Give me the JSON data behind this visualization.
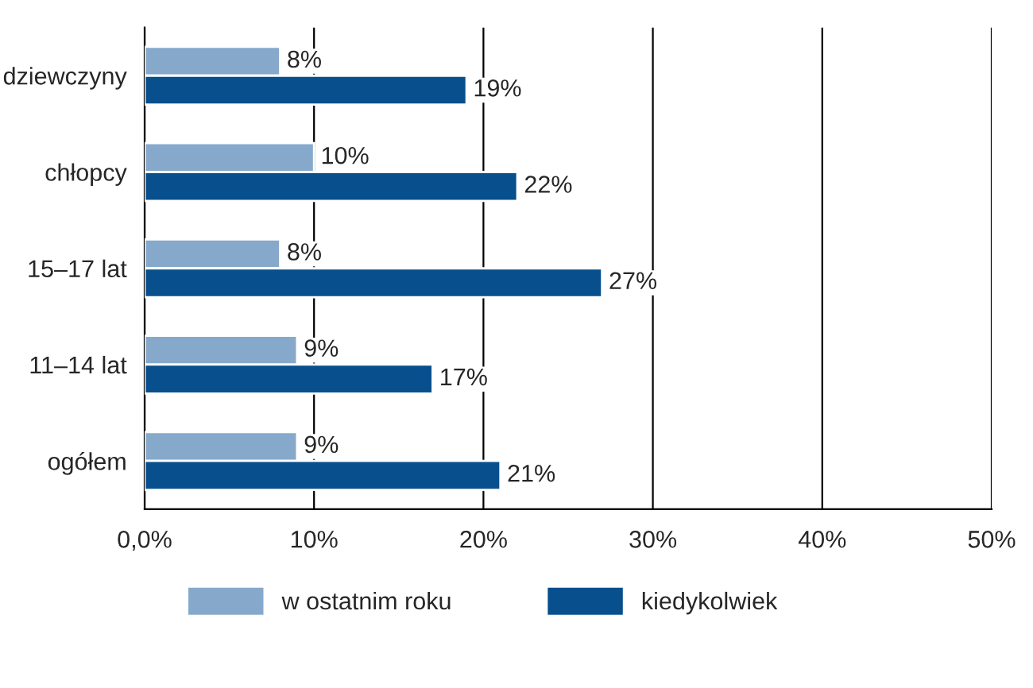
{
  "chart_data": {
    "type": "bar",
    "orientation": "horizontal",
    "categories": [
      "dziewczyny",
      "chłopcy",
      "15–17 lat",
      "11–14 lat",
      "ogółem"
    ],
    "series": [
      {
        "name": "w ostatnim roku",
        "color": "#86a9cb",
        "values": [
          8,
          10,
          8,
          9,
          9
        ],
        "value_labels": [
          "8%",
          "10%",
          "8%",
          "9%",
          "9%"
        ]
      },
      {
        "name": "kiedykolwiek",
        "color": "#074f8d",
        "values": [
          19,
          22,
          27,
          17,
          21
        ],
        "value_labels": [
          "19%",
          "22%",
          "27%",
          "17%",
          "21%"
        ]
      }
    ],
    "xlim": [
      0,
      50
    ],
    "xticks": [
      {
        "value": 0,
        "label": "0,0%"
      },
      {
        "value": 10,
        "label": "10%"
      },
      {
        "value": 20,
        "label": "20%"
      },
      {
        "value": 30,
        "label": "30%"
      },
      {
        "value": 40,
        "label": "40%"
      },
      {
        "value": 50,
        "label": "50%"
      }
    ],
    "grid": "x",
    "legend": "bottom"
  }
}
